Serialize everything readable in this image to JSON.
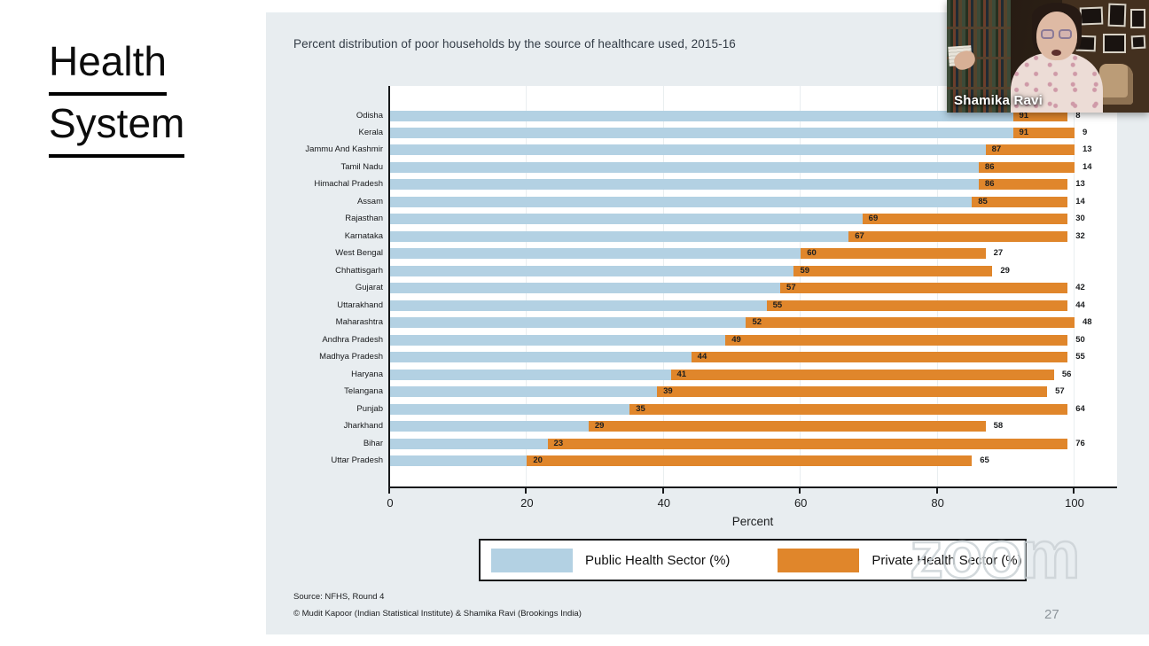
{
  "header": {
    "section_title_lines": [
      "Health",
      "System"
    ]
  },
  "chart_data": {
    "type": "bar",
    "orientation": "horizontal-stacked",
    "title": "Percent distribution of poor households by the source of healthcare used, 2015-16",
    "xlabel": "Percent",
    "xlim": [
      0,
      106
    ],
    "xticks": [
      0,
      20,
      40,
      60,
      80,
      100
    ],
    "grid": "faint-vertical",
    "legend_position": "bottom-boxed",
    "categories": [
      "Odisha",
      "Kerala",
      "Jammu And Kashmir",
      "Tamil Nadu",
      "Himachal Pradesh",
      "Assam",
      "Rajasthan",
      "Karnataka",
      "West Bengal",
      "Chhattisgarh",
      "Gujarat",
      "Uttarakhand",
      "Maharashtra",
      "Andhra Pradesh",
      "Madhya Pradesh",
      "Haryana",
      "Telangana",
      "Punjab",
      "Jharkhand",
      "Bihar",
      "Uttar Pradesh"
    ],
    "series": [
      {
        "name": "Public Health Sector (%)",
        "color": "#b3d1e3",
        "values": [
          91,
          91,
          87,
          86,
          86,
          85,
          69,
          67,
          60,
          59,
          57,
          55,
          52,
          49,
          44,
          41,
          39,
          35,
          29,
          23,
          20
        ]
      },
      {
        "name": "Private Health Sector (%)",
        "color": "#e0862b",
        "values": [
          8,
          9,
          13,
          14,
          13,
          14,
          30,
          32,
          27,
          29,
          42,
          44,
          48,
          50,
          55,
          56,
          57,
          64,
          58,
          76,
          65
        ]
      }
    ],
    "legend": [
      {
        "label": "Public Health Sector (%)",
        "color": "#b3d1e3"
      },
      {
        "label": "Private Health Sector (%)",
        "color": "#e0862b"
      }
    ]
  },
  "footer": {
    "source": "Source: NFHS, Round 4",
    "credit": "© Mudit Kapoor (Indian Statistical Institute) & Shamika Ravi (Brookings India)",
    "page_number": "27"
  },
  "webcam": {
    "participant_name": "Shamika Ravi"
  },
  "watermark": {
    "text": "zoom"
  }
}
